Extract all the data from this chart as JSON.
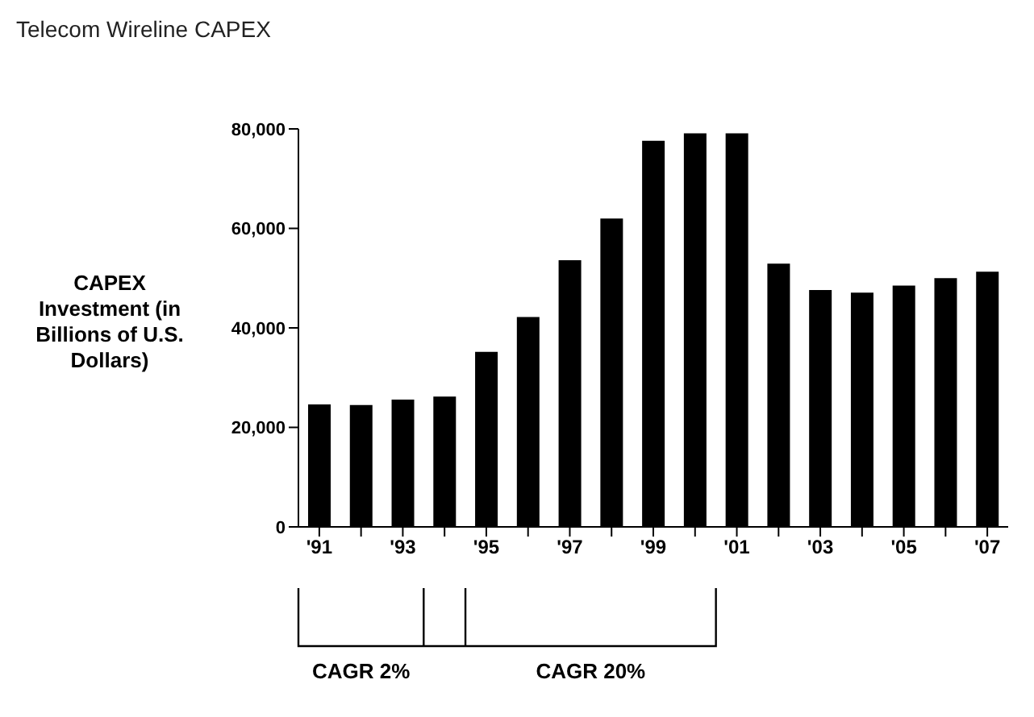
{
  "chart_data": {
    "type": "bar",
    "title": "Telecom Wireline CAPEX",
    "ylabel": "CAPEX Investment (in Billions of U.S. Dollars)",
    "categories": [
      "'91",
      null,
      "'93",
      null,
      "'95",
      null,
      "'97",
      null,
      "'99",
      null,
      "'01",
      null,
      "'03",
      null,
      "'05",
      null,
      "'07"
    ],
    "values": [
      24600,
      24500,
      25600,
      26200,
      35200,
      42200,
      53600,
      62000,
      77600,
      79100,
      79100,
      52900,
      47600,
      47100,
      48500,
      50000,
      51300
    ],
    "color": "#000000",
    "ylim": [
      0,
      80000
    ],
    "yticks": [
      {
        "value": 0,
        "label": "0"
      },
      {
        "value": 20000,
        "label": "20,000"
      },
      {
        "value": 40000,
        "label": "40,000"
      },
      {
        "value": 60000,
        "label": "60,000"
      },
      {
        "value": 80000,
        "label": "80,000"
      }
    ],
    "annotations": [
      "CAGR 2%",
      "CAGR 20%"
    ]
  }
}
